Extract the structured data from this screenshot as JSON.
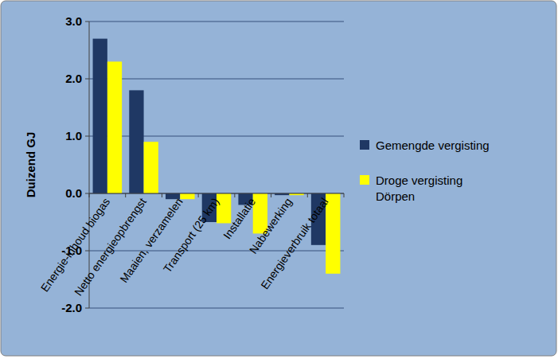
{
  "chart_data": {
    "type": "bar",
    "y_label": "Duizend GJ",
    "categories": [
      "Energie-inhoud biogas",
      "Netto energieopbrengst",
      "Maaien, verzamelen",
      "Transport (25 km)",
      "Installatie",
      "Nabewerking",
      "Energieverbruik totaal"
    ],
    "series": [
      {
        "name": "Gemengde vergisting",
        "color": "#1f3864",
        "values": [
          2.7,
          1.8,
          -0.1,
          -0.5,
          -0.2,
          -0.03,
          -0.9
        ]
      },
      {
        "name": "Droge vergisting Dörpen",
        "color": "#ffff00",
        "values": [
          2.3,
          0.9,
          -0.1,
          -0.52,
          -0.7,
          -0.03,
          -1.4
        ]
      }
    ],
    "ylim": [
      -2,
      3
    ],
    "yticks": [
      {
        "value": -2,
        "label": "-2.0"
      },
      {
        "value": -1,
        "label": "-1.0"
      },
      {
        "value": 0,
        "label": "0.0"
      },
      {
        "value": 1,
        "label": "1.0"
      },
      {
        "value": 2,
        "label": "2.0"
      },
      {
        "value": 3,
        "label": "3.0"
      }
    ],
    "grid": true,
    "legend": "right"
  }
}
